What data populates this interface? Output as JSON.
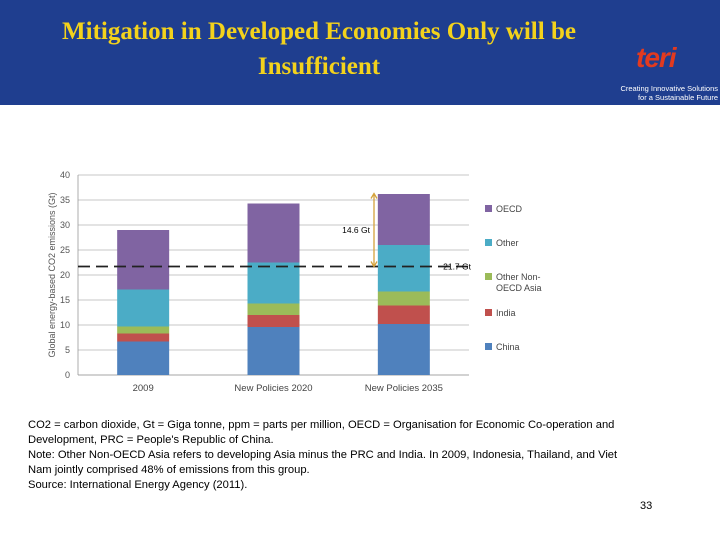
{
  "slide": {
    "title": "Mitigation in Developed Economies Only will be Insufficient",
    "logo_word": "teri",
    "logo_tagline_1": "Creating Innovative Solutions",
    "logo_tagline_2": "for a Sustainable Future",
    "notes": [
      "CO2 = carbon dioxide, Gt = Giga tonne, ppm = parts per million, OECD = Organisation for Economic Co-operation and",
      "Development, PRC = People's Republic of China.",
      "Note: Other Non-OECD Asia refers to developing Asia minus the PRC and India. In 2009, Indonesia, Thailand, and Viet",
      "Nam jointly comprised 48% of emissions from this group.",
      "Source: International Energy Agency (2011)."
    ],
    "page_number": "33"
  },
  "colors": {
    "header_bg": "#1f3e8f",
    "title": "#f3d21c",
    "logo": "#e23a1f"
  },
  "chart_data": {
    "type": "bar",
    "stacked": true,
    "ylabel": "Global energy-based CO2 emissions (Gt)",
    "ylim": [
      0,
      40
    ],
    "yticks": [
      0,
      5,
      10,
      15,
      20,
      25,
      30,
      35,
      40
    ],
    "grid": true,
    "legend_position": "right",
    "categories": [
      "2009",
      "New Policies 2020",
      "New Policies 2035"
    ],
    "series": [
      {
        "name": "China",
        "color": "#4f81bd",
        "values": [
          6.7,
          9.6,
          10.2
        ]
      },
      {
        "name": "India",
        "color": "#c0504d",
        "values": [
          1.6,
          2.4,
          3.7
        ]
      },
      {
        "name": "Other Non-OECD Asia",
        "color": "#9bbb59",
        "values": [
          1.4,
          2.3,
          2.8
        ]
      },
      {
        "name": "Other",
        "color": "#4bacc6",
        "values": [
          7.4,
          8.2,
          9.3
        ]
      },
      {
        "name": "OECD",
        "color": "#8064a2",
        "values": [
          11.9,
          11.8,
          10.2
        ]
      }
    ],
    "reference_line": {
      "value": 21.7,
      "label": "21.7 Gt"
    },
    "annotation": {
      "label": "14.6 Gt",
      "from": 21.7,
      "to": 36.3
    }
  }
}
